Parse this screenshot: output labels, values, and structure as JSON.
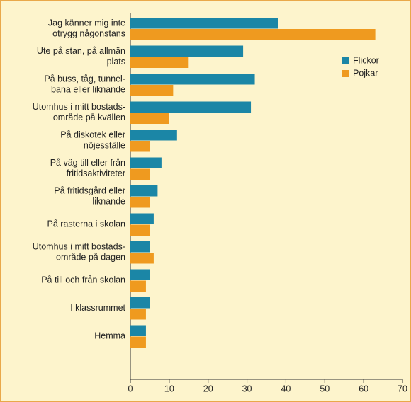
{
  "chart_data": {
    "type": "barh",
    "categories": [
      [
        "Jag känner mig inte",
        "otrygg någonstans"
      ],
      [
        "Ute på stan, på allmän",
        "plats"
      ],
      [
        "På buss, tåg, tunnel-",
        "bana eller liknande"
      ],
      [
        "Utomhus i mitt bostads-",
        "område på kvällen"
      ],
      [
        "På diskotek eller",
        "nöjesställe"
      ],
      [
        "På väg till eller från",
        "fritidsaktiviteter"
      ],
      [
        "På fritidsgård eller",
        "liknande"
      ],
      [
        "På rasterna i skolan"
      ],
      [
        "Utomhus i mitt bostads-",
        "område på dagen"
      ],
      [
        "På till och från skolan"
      ],
      [
        "I klassrummet"
      ],
      [
        "Hemma"
      ]
    ],
    "series": [
      {
        "name": "Flickor",
        "color": "#1b86a6",
        "values": [
          38,
          29,
          32,
          31,
          12,
          8,
          7,
          6,
          5,
          5,
          5,
          4
        ]
      },
      {
        "name": "Pojkar",
        "color": "#ef9a1f",
        "values": [
          63,
          15,
          11,
          10,
          5,
          5,
          5,
          5,
          6,
          4,
          4,
          4
        ]
      }
    ],
    "xlim": [
      0,
      70
    ],
    "xticks": [
      0,
      10,
      20,
      30,
      40,
      50,
      60,
      70
    ],
    "legend": "upper right"
  }
}
